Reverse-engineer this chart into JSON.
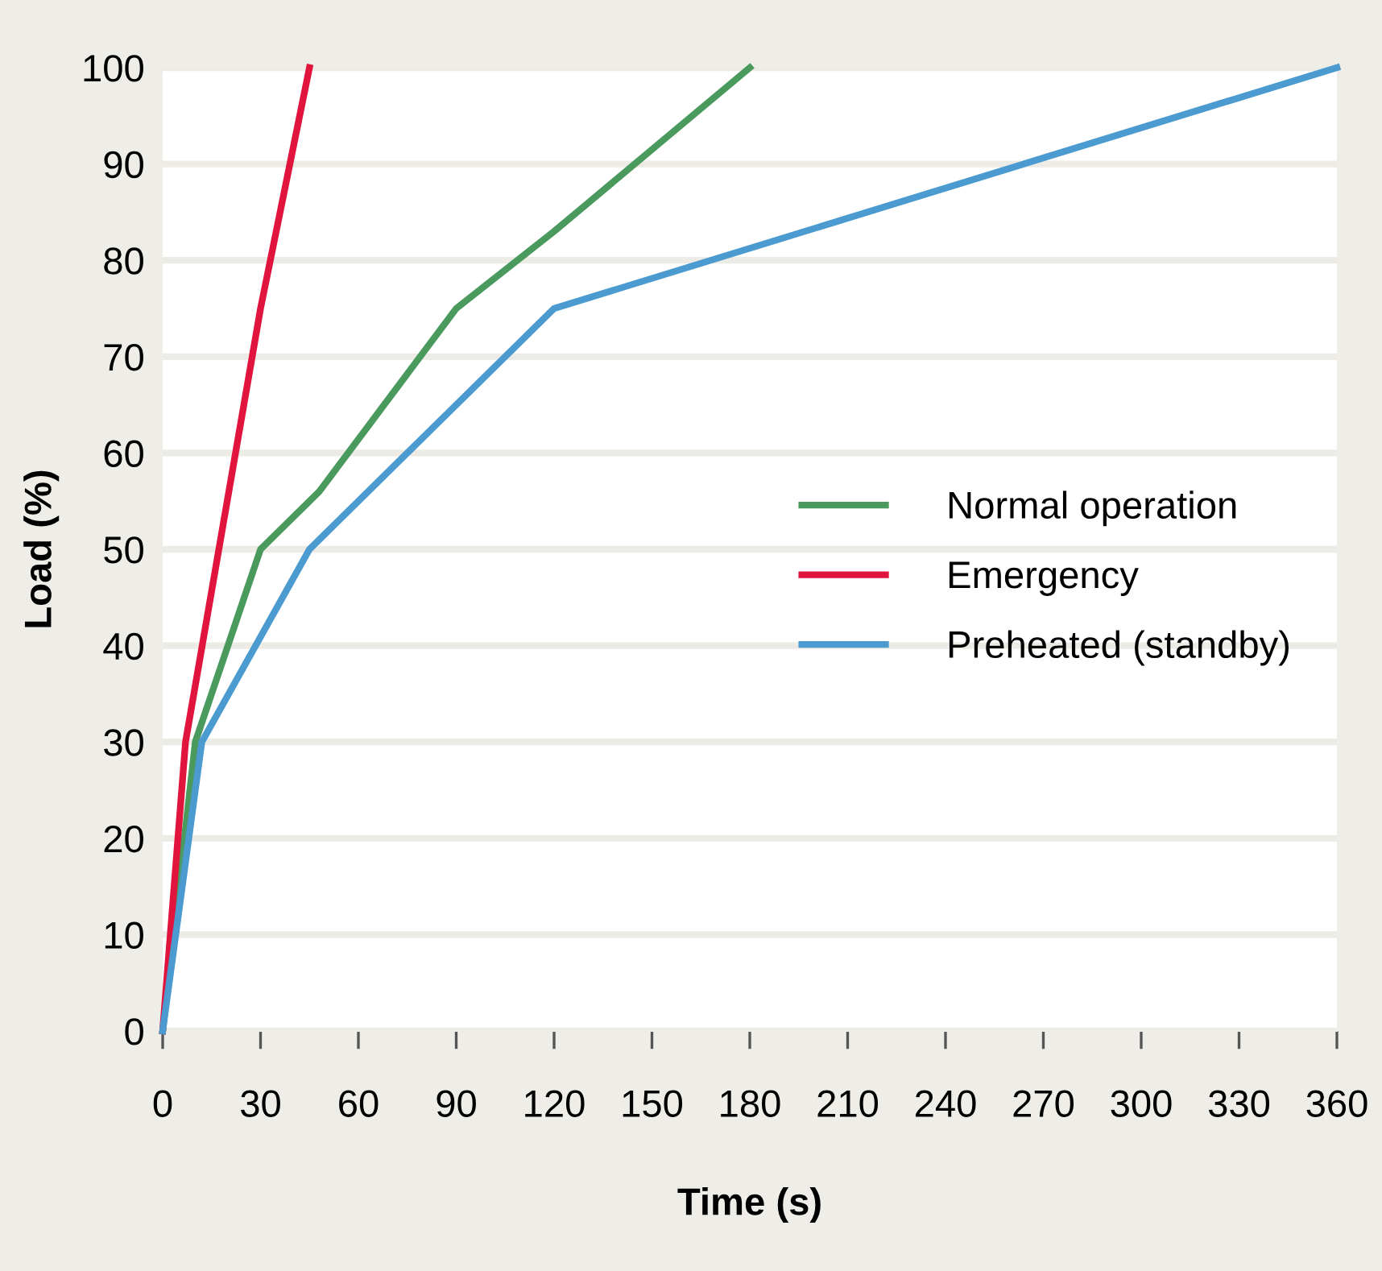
{
  "chart_data": {
    "type": "line",
    "xlabel": "Time (s)",
    "ylabel": "Load (%)",
    "xlim": [
      0,
      360
    ],
    "xticks": [
      0,
      30,
      60,
      90,
      120,
      150,
      180,
      210,
      240,
      270,
      300,
      330,
      360
    ],
    "ylim": [
      0,
      100
    ],
    "yticks": [
      0,
      10,
      20,
      30,
      40,
      50,
      60,
      70,
      80,
      90,
      100
    ],
    "grid": "y",
    "legend": "right",
    "marker": "none",
    "line_style": "solid",
    "series": [
      {
        "name": "Normal operation",
        "color": "#4a9a5e",
        "x": [
          0,
          10,
          30,
          48,
          90,
          120,
          180
        ],
        "values": [
          0,
          30,
          50,
          56,
          75,
          83,
          100
        ]
      },
      {
        "name": "Emergency",
        "color": "#e0143c",
        "x": [
          0,
          7,
          30,
          45
        ],
        "values": [
          0,
          30,
          75,
          100
        ]
      },
      {
        "name": "Preheated (standby)",
        "color": "#4b9bd0",
        "x": [
          0,
          12,
          45,
          120,
          360
        ],
        "values": [
          0,
          30,
          50,
          75,
          100
        ]
      }
    ]
  }
}
